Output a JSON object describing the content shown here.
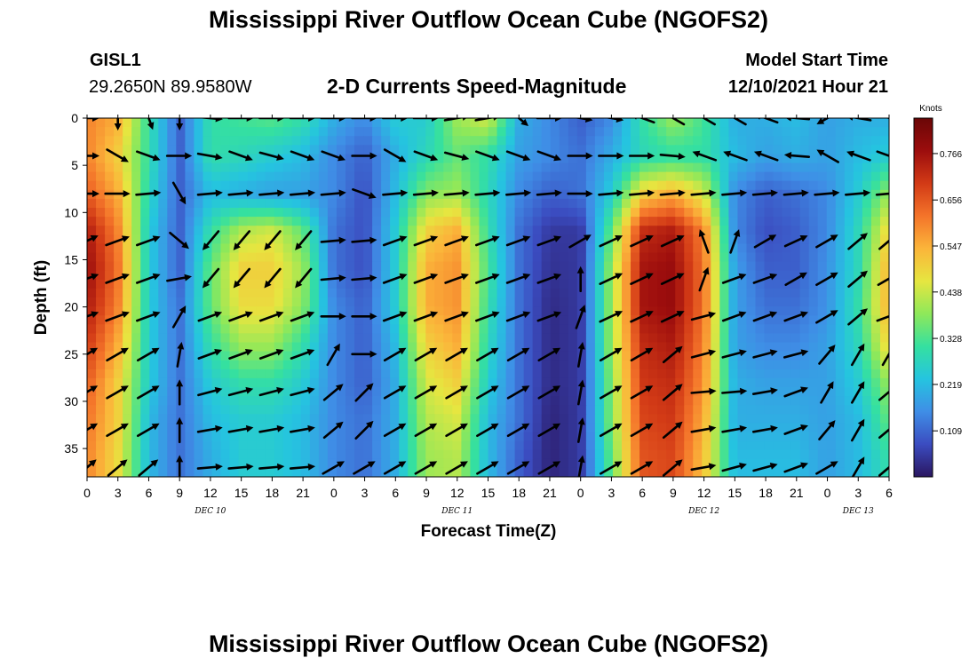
{
  "page": {
    "title": "Mississippi River Outflow Ocean Cube (NGOFS2)",
    "station_id": "GISL1",
    "station_coords": "29.2650N  89.9580W",
    "subtitle": "2-D Currents Speed-Magnitude",
    "model_start_label": "Model Start Time",
    "model_start_value": "12/10/2021 Hour 21",
    "bottom_title": "Mississippi River Outflow Ocean Cube (NGOFS2)"
  },
  "colors": {
    "scale": [
      "#2a1660",
      "#3b4cc0",
      "#3f8ee6",
      "#25c4e0",
      "#35e0a0",
      "#8ee85a",
      "#e6e640",
      "#fbb53a",
      "#f4742a",
      "#d23a16",
      "#9c0d0d",
      "#6a0606"
    ]
  },
  "chart_data": {
    "type": "heatmap",
    "xlabel": "Forecast Time(Z)",
    "ylabel": "Depth (ft)",
    "colorbar_label": "Knots",
    "x_range_hours": [
      0,
      78
    ],
    "ylim": [
      0,
      38
    ],
    "x_tick_hours": [
      0,
      3,
      6,
      9,
      12,
      15,
      18,
      21,
      24,
      27,
      30,
      33,
      36,
      39,
      42,
      45,
      48,
      51,
      54,
      57,
      60,
      63,
      66,
      69,
      72,
      75,
      78
    ],
    "x_tick_labels": [
      "0",
      "3",
      "6",
      "9",
      "12",
      "15",
      "18",
      "21",
      "0",
      "3",
      "6",
      "9",
      "12",
      "15",
      "18",
      "21",
      "0",
      "3",
      "6",
      "9",
      "12",
      "15",
      "18",
      "21",
      "0",
      "3",
      "6"
    ],
    "y_ticks": [
      0,
      5,
      10,
      15,
      20,
      25,
      30,
      35
    ],
    "day_labels": [
      {
        "label": "DEC 10",
        "hour": 12
      },
      {
        "label": "DEC 11",
        "hour": 36
      },
      {
        "label": "DEC 12",
        "hour": 60
      },
      {
        "label": "DEC 13",
        "hour": 75
      }
    ],
    "colorbar_ticks": [
      "0.766",
      "0.656",
      "0.547",
      "0.438",
      "0.328",
      "0.219",
      "0.109"
    ],
    "colorbar_tick_values": [
      0.766,
      0.656,
      0.547,
      0.438,
      0.328,
      0.219,
      0.109
    ],
    "colorbar_range": [
      0.0,
      0.85
    ],
    "speed_knots": {
      "depths_ft": [
        0,
        4,
        8,
        12,
        16,
        20,
        24,
        28,
        32,
        36
      ],
      "hours": [
        0,
        3,
        6,
        9,
        12,
        15,
        18,
        21,
        24,
        27,
        30,
        33,
        36,
        39,
        42,
        45,
        48,
        51,
        54,
        57,
        60,
        63,
        66,
        69,
        72,
        75,
        78
      ],
      "rows": [
        [
          0.6,
          0.55,
          0.3,
          0.1,
          0.3,
          0.32,
          0.34,
          0.3,
          0.2,
          0.15,
          0.25,
          0.25,
          0.4,
          0.45,
          0.2,
          0.15,
          0.1,
          0.15,
          0.3,
          0.4,
          0.32,
          0.2,
          0.2,
          0.22,
          0.18,
          0.2,
          0.2
        ],
        [
          0.6,
          0.5,
          0.3,
          0.1,
          0.3,
          0.28,
          0.25,
          0.22,
          0.15,
          0.1,
          0.2,
          0.28,
          0.35,
          0.3,
          0.18,
          0.15,
          0.12,
          0.2,
          0.28,
          0.3,
          0.3,
          0.22,
          0.18,
          0.2,
          0.18,
          0.22,
          0.25
        ],
        [
          0.65,
          0.55,
          0.28,
          0.1,
          0.22,
          0.2,
          0.18,
          0.18,
          0.15,
          0.08,
          0.22,
          0.38,
          0.4,
          0.28,
          0.15,
          0.1,
          0.12,
          0.25,
          0.5,
          0.55,
          0.45,
          0.15,
          0.1,
          0.12,
          0.15,
          0.25,
          0.4
        ],
        [
          0.75,
          0.6,
          0.25,
          0.1,
          0.3,
          0.42,
          0.45,
          0.35,
          0.12,
          0.08,
          0.25,
          0.5,
          0.55,
          0.3,
          0.12,
          0.05,
          0.05,
          0.35,
          0.72,
          0.75,
          0.6,
          0.15,
          0.08,
          0.1,
          0.15,
          0.28,
          0.5
        ],
        [
          0.78,
          0.62,
          0.25,
          0.1,
          0.35,
          0.5,
          0.5,
          0.4,
          0.12,
          0.08,
          0.25,
          0.55,
          0.58,
          0.32,
          0.12,
          0.04,
          0.05,
          0.4,
          0.76,
          0.78,
          0.62,
          0.18,
          0.1,
          0.1,
          0.16,
          0.28,
          0.55
        ],
        [
          0.75,
          0.6,
          0.25,
          0.12,
          0.35,
          0.48,
          0.48,
          0.38,
          0.15,
          0.1,
          0.25,
          0.55,
          0.58,
          0.3,
          0.12,
          0.03,
          0.05,
          0.4,
          0.76,
          0.78,
          0.62,
          0.18,
          0.12,
          0.12,
          0.16,
          0.3,
          0.55
        ],
        [
          0.7,
          0.55,
          0.25,
          0.12,
          0.3,
          0.4,
          0.4,
          0.3,
          0.15,
          0.1,
          0.22,
          0.5,
          0.55,
          0.28,
          0.12,
          0.03,
          0.05,
          0.4,
          0.72,
          0.75,
          0.6,
          0.18,
          0.15,
          0.15,
          0.18,
          0.28,
          0.5
        ],
        [
          0.65,
          0.5,
          0.25,
          0.12,
          0.25,
          0.3,
          0.3,
          0.25,
          0.15,
          0.1,
          0.2,
          0.45,
          0.5,
          0.25,
          0.12,
          0.03,
          0.05,
          0.38,
          0.7,
          0.72,
          0.58,
          0.2,
          0.18,
          0.18,
          0.18,
          0.25,
          0.4
        ],
        [
          0.62,
          0.5,
          0.22,
          0.12,
          0.22,
          0.25,
          0.25,
          0.22,
          0.15,
          0.12,
          0.2,
          0.42,
          0.45,
          0.22,
          0.12,
          0.02,
          0.05,
          0.38,
          0.68,
          0.7,
          0.55,
          0.2,
          0.2,
          0.2,
          0.18,
          0.22,
          0.35
        ],
        [
          0.6,
          0.48,
          0.22,
          0.12,
          0.2,
          0.25,
          0.25,
          0.22,
          0.15,
          0.12,
          0.2,
          0.4,
          0.42,
          0.22,
          0.1,
          0.02,
          0.05,
          0.35,
          0.66,
          0.68,
          0.52,
          0.22,
          0.22,
          0.22,
          0.18,
          0.22,
          0.3
        ]
      ]
    },
    "vectors": {
      "depths_ft": [
        0,
        4,
        8,
        13,
        17,
        21,
        25,
        29,
        33,
        37
      ],
      "hours": [
        0,
        3,
        6,
        9,
        12,
        15,
        18,
        21,
        24,
        27,
        30,
        33,
        36,
        39,
        42,
        45,
        48,
        51,
        54,
        57,
        60,
        63,
        66,
        69,
        72,
        75,
        78
      ],
      "direction_deg": [
        [
          0,
          90,
          70,
          90,
          5,
          0,
          0,
          0,
          0,
          0,
          0,
          0,
          -10,
          -10,
          40,
          0,
          10,
          10,
          -160,
          -150,
          -150,
          -150,
          -160,
          -175,
          150,
          -170,
          30
        ],
        [
          0,
          30,
          20,
          0,
          10,
          20,
          15,
          20,
          20,
          0,
          30,
          20,
          15,
          20,
          20,
          20,
          0,
          0,
          0,
          5,
          -160,
          -160,
          -160,
          -175,
          -150,
          -160,
          20
        ],
        [
          0,
          0,
          -5,
          60,
          -5,
          -5,
          -5,
          -5,
          -5,
          20,
          -5,
          -5,
          -5,
          -5,
          -5,
          -5,
          0,
          -5,
          -5,
          -5,
          -5,
          -5,
          -5,
          -5,
          -5,
          -5,
          -5
        ],
        [
          -25,
          -20,
          -20,
          40,
          130,
          130,
          130,
          130,
          -5,
          -5,
          -20,
          -20,
          -20,
          -20,
          -20,
          -20,
          -30,
          -25,
          -25,
          -25,
          -110,
          -70,
          -30,
          -25,
          -30,
          -40,
          -40
        ],
        [
          -20,
          -20,
          -20,
          -10,
          130,
          130,
          130,
          130,
          -5,
          -5,
          -20,
          -20,
          -20,
          -20,
          -20,
          -20,
          -90,
          -25,
          -25,
          -25,
          -70,
          -20,
          -20,
          -30,
          -30,
          -40,
          -30
        ],
        [
          -20,
          -20,
          -20,
          -60,
          -20,
          -20,
          -20,
          -20,
          0,
          0,
          -20,
          -20,
          -20,
          -20,
          -20,
          -20,
          -70,
          -25,
          -25,
          -25,
          -15,
          -20,
          -20,
          -20,
          -30,
          -40,
          -20
        ],
        [
          -30,
          -30,
          -30,
          -80,
          -20,
          -20,
          -20,
          -20,
          -60,
          0,
          -30,
          -30,
          -30,
          -30,
          -30,
          -30,
          -80,
          -30,
          -30,
          -40,
          -15,
          -15,
          -15,
          -15,
          -50,
          -60,
          -60
        ],
        [
          -30,
          -30,
          -30,
          -90,
          -15,
          -15,
          -15,
          -15,
          -40,
          -45,
          -30,
          -30,
          -30,
          -30,
          -30,
          -30,
          -80,
          -30,
          -30,
          -40,
          -5,
          -5,
          -10,
          -20,
          -60,
          -60,
          -40
        ],
        [
          -30,
          -30,
          -30,
          -90,
          -10,
          -10,
          -10,
          -10,
          -40,
          -45,
          -30,
          -30,
          -30,
          -30,
          -30,
          -30,
          -80,
          -30,
          -30,
          -40,
          -10,
          -10,
          -10,
          -20,
          -50,
          -60,
          -40
        ],
        [
          -40,
          -40,
          -40,
          -90,
          -5,
          -5,
          -5,
          -5,
          -30,
          -30,
          -30,
          -30,
          -30,
          -30,
          -30,
          -30,
          -80,
          -30,
          -30,
          -40,
          -10,
          -15,
          -15,
          -20,
          -30,
          -60,
          -40
        ]
      ]
    }
  }
}
